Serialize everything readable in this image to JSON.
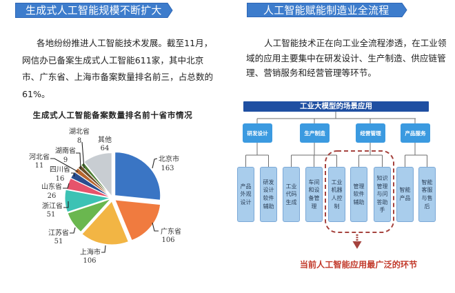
{
  "left": {
    "banner": "生成式人工智能规模不断扩大",
    "paragraph_lines": [
      "各地纷纷推进人工智能技术发展。截至11月，",
      "网信办已备案生成式人工智能611家，其中北京",
      "市、广东省、上海市备案数量排名前三，占总数的",
      "61%。"
    ]
  },
  "right": {
    "banner": "人工智能赋能制造业全流程",
    "paragraph_lines": [
      "人工智能技术正在向工业全流程渗透，在工业领",
      "域的应用主要集中在研发设计、生产制造、供应链管",
      "理、营销服务和经营管理等环节。"
    ],
    "diagram": {
      "title": "工业大模型的场景应用",
      "categories": [
        {
          "label": "研发设计",
          "children": [
            "产品\n外观\n设计",
            "研发\n设计\n软件\n辅助"
          ]
        },
        {
          "label": "生产制造",
          "children": [
            "工业\n代码\n生成",
            "车间\n和设\n备管\n理",
            "工业\n机器\n人控\n制"
          ]
        },
        {
          "label": "经营管理",
          "children": [
            "管理\n软件\n辅助",
            "知识\n管理\n与问\n答助\n手"
          ]
        },
        {
          "label": "产品服务",
          "children": [
            "智能\n产品",
            "智能\n客服\n与售\n后"
          ]
        }
      ],
      "highlighted_children": [
        "工业机器人控制",
        "管理软件辅助",
        "知识管理与问答助手"
      ],
      "highlight_note": "当前人工智能应用最广泛的环节"
    }
  },
  "colors": {
    "banner": "#3d7ccc",
    "banner_border": "#2d66b5",
    "diagram_header": "#1f4fa2",
    "category_box": "#3b9ae0",
    "leaf_box": "#a9cdec",
    "leaf_border": "#7aa7d6",
    "highlight": "#a5423d",
    "callout_text": "#c23a2b"
  },
  "chart_data": {
    "type": "pie",
    "title": "生成式人工智能备案数量排名前十省市情况",
    "categories": [
      "北京市",
      "广东省",
      "上海市",
      "江苏省",
      "浙江省",
      "山东省",
      "四川省",
      "河北省",
      "湖南省",
      "湖北省",
      "其他"
    ],
    "values": [
      163,
      106,
      106,
      51,
      51,
      26,
      16,
      11,
      9,
      8,
      64
    ],
    "total": 611,
    "colors": [
      "#3a75c4",
      "#f07b3f",
      "#f2b544",
      "#6ab74f",
      "#3cc2b4",
      "#e6536b",
      "#2a4d8f",
      "#b8652e",
      "#6b4f2a",
      "#4e7d33",
      "#c8cdd2"
    ],
    "start_angle": "top",
    "direction": "clockwise",
    "legend": "none",
    "data_labels": "category name above value, with leader lines",
    "xlabel": "",
    "ylabel": ""
  }
}
